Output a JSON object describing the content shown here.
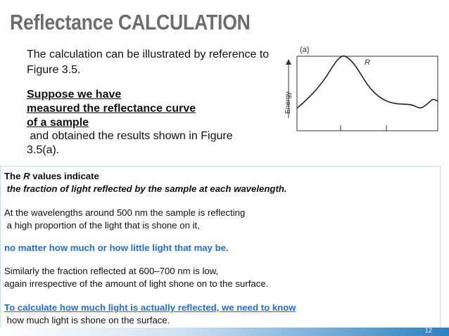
{
  "title": "Reflectance CALCULATION",
  "intro": {
    "lines": [
      "The calculation can be illustrated by reference to",
      "Figure 3.5."
    ],
    "underlined_lines": [
      "Suppose we have",
      "measured the reflectance curve",
      "of a sample"
    ],
    "closing_lines": [
      " and obtained the results shown in Figure",
      "3.5(a)."
    ]
  },
  "figure": {
    "panel_label": "(a)",
    "curve_label": "R",
    "y_axis_label": "Energy"
  },
  "box": {
    "line_0": {
      "pre": "The ",
      "italic": "R",
      "post": " values indicate"
    },
    "line_1": " the fraction of light reflected by the sample at each wavelength.",
    "line_2": "At the wavelengths around 500 nm the sample is reflecting",
    "line_3": " a high proportion of the light that is shone on it,",
    "line_4": "no matter how much or how little light that may be.",
    "line_5": "Similarly the fraction reflected at 600–700 nm is low,",
    "line_6": "again irrespective of the amount of light shone on to the surface.",
    "line_7": "To calculate how much light is actually reflected, we need to know",
    "line_8": " how much light is shone on the surface."
  },
  "slide_number": "12"
}
